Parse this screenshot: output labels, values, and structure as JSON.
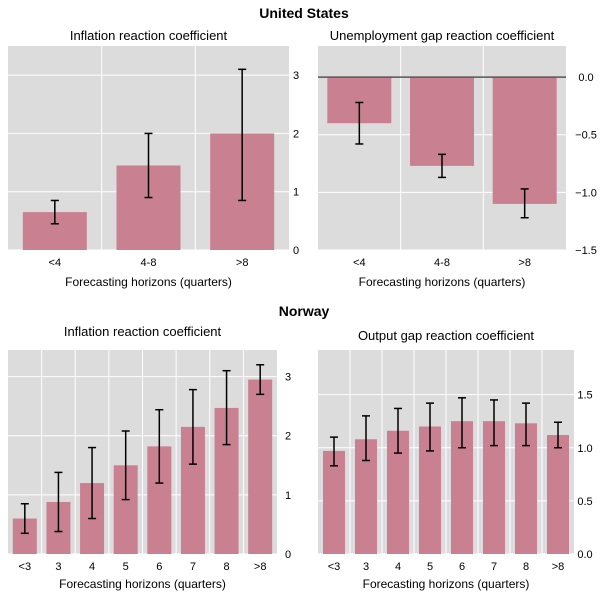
{
  "sections": [
    {
      "title": "United States"
    },
    {
      "title": "Norway"
    }
  ],
  "colors": {
    "bar": "#c98091",
    "plot_bg": "#dcdcdc",
    "grid": "#ffffff",
    "error": "#000000",
    "zero_line": "#555555"
  },
  "chart_data": [
    {
      "type": "bar",
      "section": "United States",
      "title": "Inflation reaction coefficient",
      "xlabel": "Forecasting horizons (quarters)",
      "categories": [
        "<4",
        "4-8",
        ">8"
      ],
      "values": [
        0.65,
        1.45,
        2.0
      ],
      "err_low": [
        0.45,
        0.9,
        0.85
      ],
      "err_high": [
        0.85,
        2.0,
        3.1
      ],
      "ylim": [
        0,
        3.5
      ],
      "yticks": [
        0,
        1,
        2,
        3
      ],
      "ytick_labels": [
        "0",
        "1",
        "2",
        "3"
      ]
    },
    {
      "type": "bar",
      "section": "United States",
      "title": "Unemployment gap reaction coefficient",
      "xlabel": "Forecasting horizons (quarters)",
      "categories": [
        "<4",
        "4-8",
        ">8"
      ],
      "values": [
        -0.4,
        -0.77,
        -1.1
      ],
      "err_low": [
        -0.58,
        -0.87,
        -1.22
      ],
      "err_high": [
        -0.22,
        -0.67,
        -0.97
      ],
      "ylim": [
        -1.5,
        0.27
      ],
      "yticks": [
        0,
        -0.5,
        -1.0,
        -1.5
      ],
      "ytick_labels": [
        "0.0",
        "−0.5",
        "−1.0",
        "−1.5"
      ],
      "zero_line": true
    },
    {
      "type": "bar",
      "section": "Norway",
      "title": "Inflation reaction coefficient",
      "xlabel": "Forecasting horizons (quarters)",
      "categories": [
        "<3",
        "3",
        "4",
        "5",
        "6",
        "7",
        "8",
        ">8"
      ],
      "values": [
        0.6,
        0.88,
        1.2,
        1.5,
        1.82,
        2.15,
        2.47,
        2.95
      ],
      "err_low": [
        0.35,
        0.38,
        0.6,
        0.92,
        1.2,
        1.52,
        1.85,
        2.7
      ],
      "err_high": [
        0.85,
        1.38,
        1.8,
        2.08,
        2.44,
        2.78,
        3.1,
        3.2
      ],
      "ylim": [
        0,
        3.45
      ],
      "yticks": [
        0,
        1,
        2,
        3
      ],
      "ytick_labels": [
        "0",
        "1",
        "2",
        "3"
      ]
    },
    {
      "type": "bar",
      "section": "Norway",
      "title": "Output gap reaction coefficient",
      "xlabel": "Forecasting horizons (quarters)",
      "categories": [
        "<3",
        "3",
        "4",
        "5",
        "6",
        "7",
        "8",
        ">8"
      ],
      "values": [
        0.97,
        1.08,
        1.16,
        1.2,
        1.25,
        1.25,
        1.23,
        1.12
      ],
      "err_low": [
        0.83,
        0.88,
        0.95,
        0.97,
        1.0,
        1.02,
        1.02,
        1.0
      ],
      "err_high": [
        1.1,
        1.3,
        1.37,
        1.42,
        1.47,
        1.45,
        1.42,
        1.24
      ],
      "ylim": [
        0,
        1.92
      ],
      "yticks": [
        0,
        0.5,
        1.0,
        1.5
      ],
      "ytick_labels": [
        "0.0",
        "0.5",
        "1.0",
        "1.5"
      ]
    }
  ]
}
